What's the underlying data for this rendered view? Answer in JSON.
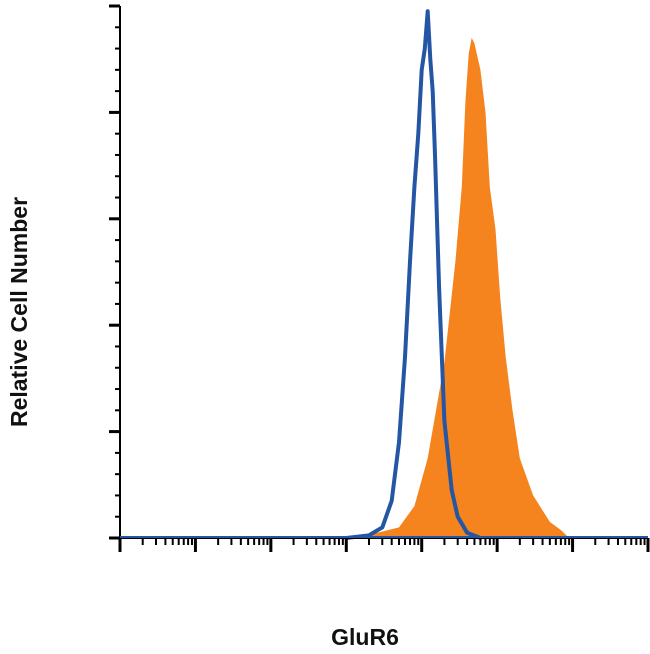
{
  "chart_data": {
    "type": "area",
    "title": "",
    "xlabel": "GluR6",
    "ylabel": "Relative Cell Number",
    "x_scale": "log",
    "xlim": [
      1,
      10000000
    ],
    "ylim": [
      0,
      100
    ],
    "grid": false,
    "legend": "none",
    "series": [
      {
        "style": "filled",
        "color": "#f5841f",
        "x": [
          1000,
          2000,
          5000,
          8000,
          12000,
          20000,
          28000,
          34000,
          38000,
          42000,
          46000,
          50000,
          60000,
          70000,
          80000,
          95000,
          110000,
          130000,
          160000,
          200000,
          300000,
          500000,
          700000,
          900000
        ],
        "values": [
          0,
          0.6,
          2,
          6,
          15,
          33,
          52,
          66,
          82,
          91,
          94,
          93,
          88,
          80,
          66,
          58,
          45,
          34,
          24,
          15,
          8,
          3,
          1.5,
          0
        ]
      },
      {
        "style": "outline",
        "color": "#2456a4",
        "x": [
          1000,
          2000,
          3000,
          4000,
          5000,
          6000,
          7000,
          8000,
          9000,
          10000,
          11000,
          12000,
          13000,
          14000,
          15000,
          17000,
          20000,
          25000,
          30000,
          40000,
          60000
        ],
        "values": [
          0,
          0.5,
          2,
          7,
          18,
          34,
          52,
          66,
          76,
          88,
          92,
          99,
          90,
          84,
          72,
          47,
          22,
          9,
          4,
          1,
          0
        ]
      }
    ]
  }
}
